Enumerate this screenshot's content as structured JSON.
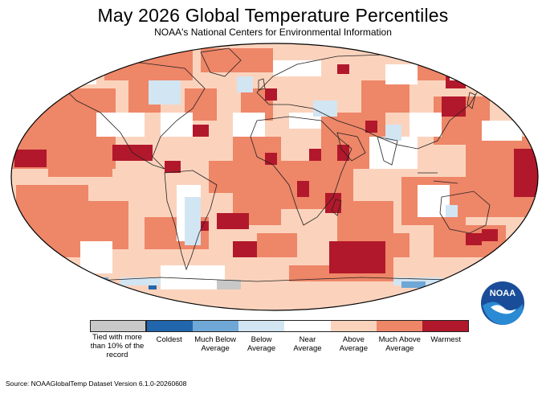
{
  "header": {
    "title": "May 2026 Global Temperature Percentiles",
    "subtitle": "NOAA's National Centers for Environmental Information"
  },
  "legend": {
    "tied_label": "Tied with more than 10% of the record",
    "tied_color": "#c8c8c8",
    "categories": [
      {
        "label": "Coldest",
        "color": "#2166ac"
      },
      {
        "label": "Much Below Average",
        "color": "#6fa8d6"
      },
      {
        "label": "Below Average",
        "color": "#d2e5f3"
      },
      {
        "label": "Near Average",
        "color": "#ffffff"
      },
      {
        "label": "Above Average",
        "color": "#fbd3bd"
      },
      {
        "label": "Much Above Average",
        "color": "#ee8668"
      },
      {
        "label": "Warmest",
        "color": "#b2182b"
      }
    ]
  },
  "logo": {
    "text": "NOAA"
  },
  "footer": {
    "source": "Source: NOAAGlobalTemp Dataset Version 6.1.0-20260608"
  }
}
